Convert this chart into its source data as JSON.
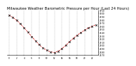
{
  "title": "Milwaukee Weather Barometric Pressure per Hour (Last 24 Hours)",
  "hours": [
    0,
    1,
    2,
    3,
    4,
    5,
    6,
    7,
    8,
    9,
    10,
    11,
    12,
    13,
    14,
    15,
    16,
    17,
    18,
    19,
    20,
    21,
    22,
    23
  ],
  "pressure": [
    29.95,
    29.88,
    29.79,
    29.68,
    29.55,
    29.42,
    29.28,
    29.15,
    29.02,
    28.92,
    28.85,
    28.8,
    28.78,
    28.82,
    28.9,
    29.0,
    29.12,
    29.22,
    29.32,
    29.4,
    29.48,
    29.55,
    29.6,
    29.65
  ],
  "line_color": "#cc0000",
  "marker_color": "#000000",
  "bg_color": "#ffffff",
  "grid_color": "#999999",
  "title_color": "#000000",
  "ylim_min": 28.7,
  "ylim_max": 30.1,
  "ytick_step": 0.1,
  "title_fontsize": 3.8,
  "tick_fontsize": 2.0,
  "xtick_fontsize": 2.0
}
